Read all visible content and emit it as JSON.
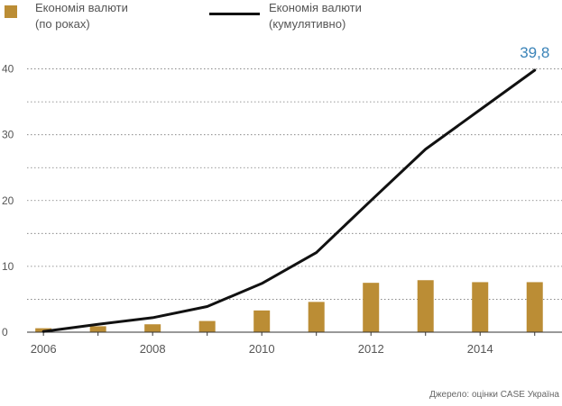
{
  "legend": {
    "bar_label_line1": "Економія валюти",
    "bar_label_line2": "(по роках)",
    "line_label_line1": "Економія валюти",
    "line_label_line2": "(кумулятивно)"
  },
  "source": "Джерело: оцінки CASE Україна",
  "colors": {
    "bar": "#bb8d35",
    "line": "#111111",
    "annotation": "#3a83b8",
    "grid": "#777777",
    "text": "#555555"
  },
  "chart_data": {
    "type": "bar+line",
    "x": [
      2006,
      2007,
      2008,
      2009,
      2010,
      2011,
      2012,
      2013,
      2014,
      2015
    ],
    "x_tick_labels": [
      "2006",
      "2008",
      "2010",
      "2012",
      "2014"
    ],
    "x_tick_values": [
      2006,
      2008,
      2010,
      2012,
      2014
    ],
    "y_ticks": [
      0,
      10,
      20,
      30,
      40
    ],
    "y_tick_labels": [
      "0",
      "10",
      "20",
      "30",
      "40"
    ],
    "ylim": [
      0,
      45
    ],
    "xlim": [
      2005.7,
      2015.5
    ],
    "grid": "dotted horizontal at every 5 units",
    "series": [
      {
        "name": "Економія валюти (по роках)",
        "type": "bar",
        "values": [
          0.6,
          0.9,
          1.2,
          1.7,
          3.3,
          4.6,
          7.5,
          7.9,
          7.6,
          7.6
        ]
      },
      {
        "name": "Економія валюти (кумулятивно)",
        "type": "line",
        "values": [
          0.1,
          1.2,
          2.2,
          3.9,
          7.4,
          12.1,
          20.0,
          27.8,
          33.8,
          39.8
        ]
      }
    ],
    "annotation": {
      "text": "39,8",
      "x": 2015,
      "y": 39.8
    }
  }
}
